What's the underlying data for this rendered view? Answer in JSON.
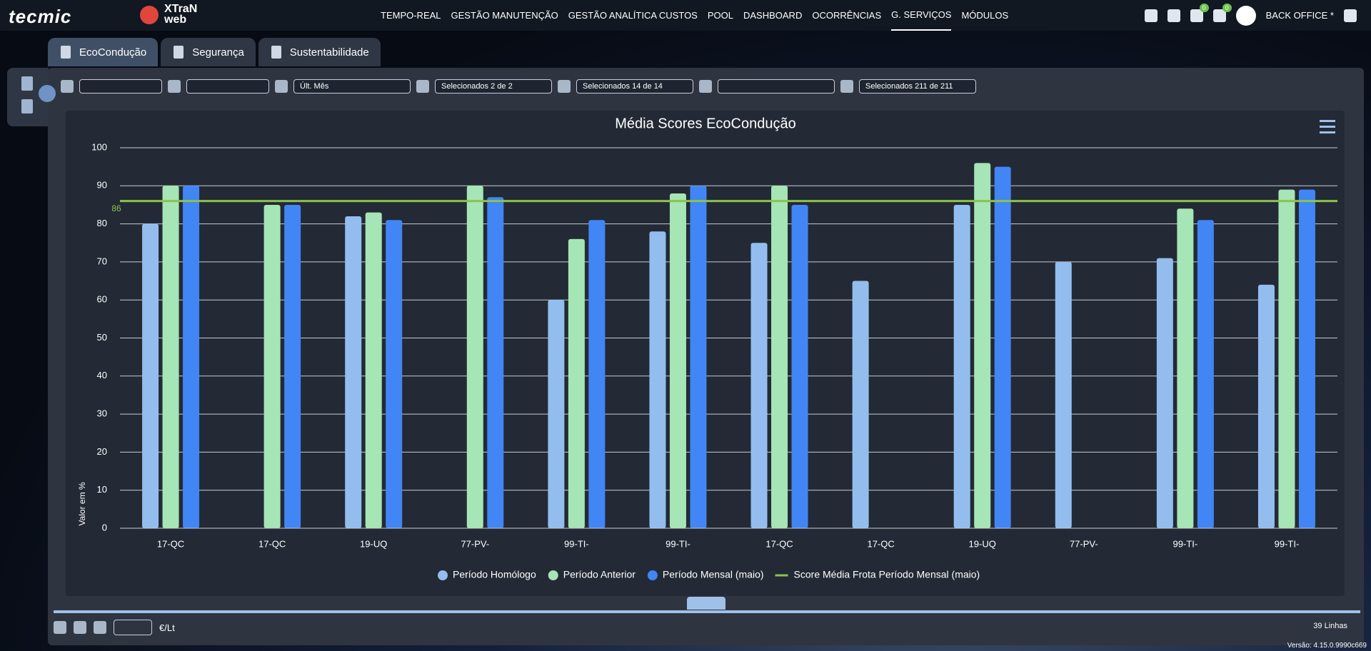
{
  "header": {
    "logo": "tecmic",
    "product": "XTraN web",
    "nav": [
      "TEMPO-REAL",
      "GESTÃO MANUTENÇÃO",
      "GESTÃO ANALÍTICA CUSTOS",
      "POOL",
      "DASHBOARD",
      "OCORRÊNCIAS",
      "G. SERVIÇOS",
      "MÓDULOS"
    ],
    "notifications": "0",
    "messages": "0",
    "user": "BACK OFFICE *"
  },
  "tabs": [
    "EcoCondução",
    "Segurança",
    "Sustentabilidade"
  ],
  "filters": {
    "period": "Últ. Mês",
    "groups": "Selecionados 2 de 2",
    "drivers": "Selecionados 14 de 14",
    "vehicles": "Selecionados 211 de 211"
  },
  "footer": {
    "unit": "€/Lt",
    "rows": "39 Linhas",
    "version": "Versão: 4.15.0.9990c669"
  },
  "chart_data": {
    "type": "bar",
    "title": "Média Scores EcoCondução",
    "y_label": "Valor em %",
    "categories": [
      "17-QC",
      "17-QC",
      "19-UQ",
      "77-PV-",
      "99-TI-",
      "99-TI-",
      "17-QC",
      "17-QC",
      "19-UQ",
      "77-PV-",
      "99-TI-",
      "99-TI-"
    ],
    "series": [
      {
        "name": "Período Homólogo",
        "color": "#93bdee",
        "values": [
          80,
          null,
          82,
          null,
          60,
          78,
          75,
          65,
          85,
          70,
          71,
          64
        ]
      },
      {
        "name": "Período Anterior",
        "color": "#a6e5b5",
        "values": [
          90,
          85,
          83,
          90,
          76,
          88,
          90,
          null,
          96,
          null,
          84,
          89
        ]
      },
      {
        "name": "Período Mensal (maio)",
        "color": "#4285f4",
        "values": [
          90,
          85,
          81,
          87,
          81,
          90,
          85,
          null,
          95,
          null,
          81,
          89
        ]
      }
    ],
    "reference_line": {
      "name": "Score Média Frota Período Mensal (maio)",
      "value": 86,
      "color": "#8bc34a"
    },
    "ylim": [
      0,
      100
    ],
    "yticks": [
      0,
      10,
      20,
      30,
      40,
      50,
      60,
      70,
      80,
      90,
      100
    ],
    "grid": true,
    "legend": "bottom"
  }
}
